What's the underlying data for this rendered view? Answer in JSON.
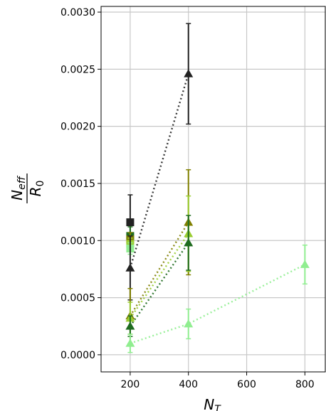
{
  "chart_data": {
    "type": "scatter",
    "title": "",
    "xlabel_main": "N",
    "xlabel_sub": "T",
    "ylabel_num_main": "N",
    "ylabel_num_sub": "eff",
    "ylabel_den_main": "R",
    "ylabel_den_sub": "0",
    "xlim": [
      100,
      870
    ],
    "ylim": [
      -0.00015,
      0.00305
    ],
    "xticks": [
      200,
      400,
      600,
      800
    ],
    "xtick_labels": [
      "200",
      "400",
      "600",
      "800"
    ],
    "yticks": [
      0.0,
      0.0005,
      0.001,
      0.0015,
      0.002,
      0.0025,
      0.003
    ],
    "ytick_labels": [
      "0.0000",
      "0.0005",
      "0.0010",
      "0.0015",
      "0.0020",
      "0.0025",
      "0.0030"
    ],
    "grid": true,
    "series": [
      {
        "color": "#222222",
        "marker": "triangle",
        "x": [
          200,
          400
        ],
        "y": [
          0.00076,
          0.00246
        ],
        "err": [
          0.00028,
          0.00044
        ]
      },
      {
        "color": "#808000",
        "marker": "triangle",
        "x": [
          200,
          400
        ],
        "y": [
          0.00034,
          0.00116
        ],
        "err": [
          0.00024,
          0.00046
        ]
      },
      {
        "color": "#9ACD32",
        "marker": "triangle",
        "x": [
          200,
          400
        ],
        "y": [
          0.00032,
          0.00106
        ],
        "err": [
          0.00014,
          0.00033
        ]
      },
      {
        "color": "#1E6B1E",
        "marker": "triangle",
        "x": [
          200,
          400
        ],
        "y": [
          0.00025,
          0.00098
        ],
        "err": [
          9e-05,
          0.00024
        ]
      },
      {
        "color": "#90EE90",
        "marker": "triangle",
        "x": [
          200,
          400,
          800
        ],
        "y": [
          0.0001,
          0.00027,
          0.00079
        ],
        "err": [
          8e-05,
          0.00013,
          0.00017
        ]
      }
    ],
    "square_markers": [
      {
        "color": "#222222",
        "x": 200,
        "y": 0.00116,
        "err": 0.00024
      },
      {
        "color": "#1E6B1E",
        "x": 200,
        "y": 0.00104,
        "err": 8e-05
      },
      {
        "color": "#808000",
        "x": 200,
        "y": 0.00101,
        "err": 6e-05
      },
      {
        "color": "#9ACD32",
        "x": 200,
        "y": 0.00097,
        "err": 5e-05
      },
      {
        "color": "#90EE90",
        "x": 200,
        "y": 0.00093,
        "err": 5e-05
      }
    ]
  }
}
